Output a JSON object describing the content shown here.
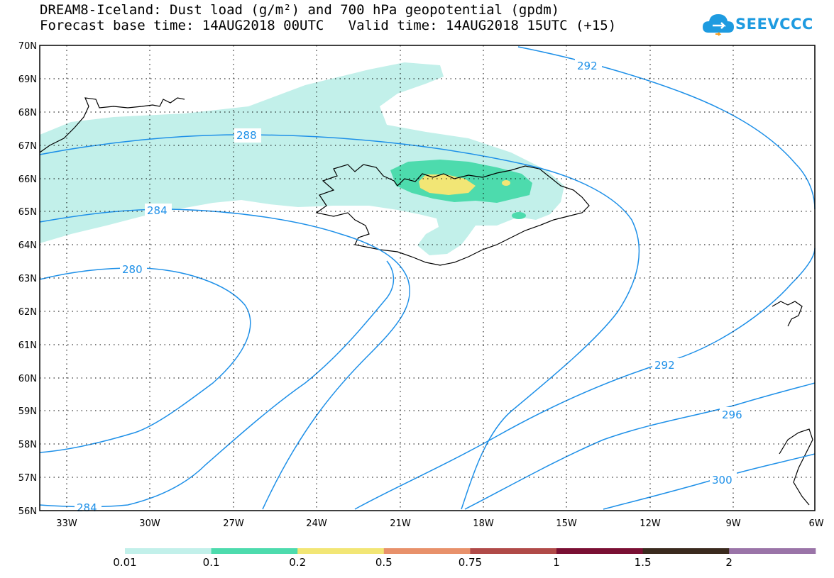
{
  "title": {
    "line1": "DREAM8-Iceland: Dust load (g/m²) and 700 hPa geopotential (gpdm)",
    "line2": "Forecast base time: 14AUG2018 00UTC   Valid time: 14AUG2018 15UTC (+15)"
  },
  "logo": {
    "text": "SEEVCCC",
    "icon": "cloud-icon"
  },
  "map": {
    "lon_labels": [
      "33W",
      "30W",
      "27W",
      "24W",
      "21W",
      "18W",
      "15W",
      "12W",
      "9W",
      "6W"
    ],
    "lat_labels": [
      "70N",
      "69N",
      "68N",
      "67N",
      "66N",
      "65N",
      "64N",
      "63N",
      "62N",
      "61N",
      "60N",
      "59N",
      "58N",
      "57N",
      "56N"
    ],
    "contour_labels": [
      "292",
      "288",
      "284",
      "280",
      "284",
      "292",
      "296",
      "300"
    ],
    "contour_color": "#1e90e8"
  },
  "legend": {
    "ticks": [
      "0.01",
      "0.1",
      "0.2",
      "0.5",
      "0.75",
      "1",
      "1.5",
      "2"
    ],
    "colors": [
      "#c2f0ea",
      "#4ddbad",
      "#f2e675",
      "#e8916b",
      "#b04a48",
      "#7a0f33",
      "#3a2a1e",
      "#9a74a8"
    ]
  }
}
